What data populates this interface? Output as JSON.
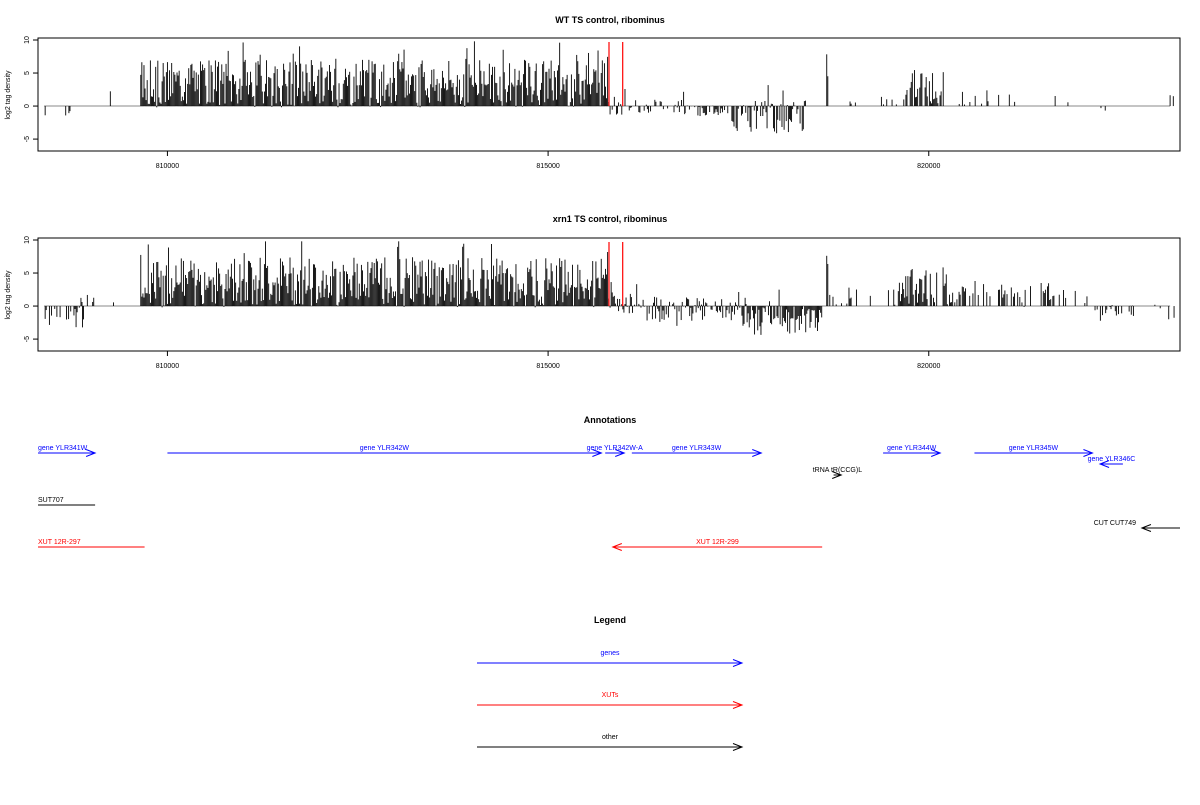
{
  "chart_data": [
    {
      "type": "bar",
      "title": "WT TS control, ribominus",
      "ylabel": "log2 tag density",
      "xlabel": "",
      "xlim": [
        808300,
        823300
      ],
      "ylim": [
        -6.5,
        10
      ],
      "yticks": [
        -5,
        0,
        5,
        10
      ],
      "xticks": [
        810000,
        815000,
        820000
      ],
      "grid": false,
      "markers": [
        815800,
        815980
      ],
      "marker_color": "#ff0000",
      "bar_color": "#000000",
      "segments": [
        {
          "x0": 808380,
          "x1": 808420,
          "mean": -1.0,
          "amp": 0.5,
          "density": 0.6,
          "seed": 11
        },
        {
          "x0": 808650,
          "x1": 808760,
          "mean": -1.2,
          "amp": 0.6,
          "density": 0.5,
          "seed": 12
        },
        {
          "x0": 809250,
          "x1": 809260,
          "mean": 2.0,
          "amp": 0.3,
          "density": 1.0,
          "seed": 13
        },
        {
          "x0": 809650,
          "x1": 815800,
          "mean": 3.4,
          "amp": 3.6,
          "density": 1.0,
          "seed": 14
        },
        {
          "x0": 815800,
          "x1": 816800,
          "mean": 0.1,
          "amp": 1.4,
          "density": 0.45,
          "seed": 15
        },
        {
          "x0": 816800,
          "x1": 817400,
          "mean": -0.6,
          "amp": 1.0,
          "density": 0.55,
          "seed": 16
        },
        {
          "x0": 817400,
          "x1": 818380,
          "mean": -1.7,
          "amp": 2.6,
          "density": 0.85,
          "seed": 17
        },
        {
          "x0": 818660,
          "x1": 818680,
          "mean": 6.0,
          "amp": 2.5,
          "density": 1.0,
          "seed": 18
        },
        {
          "x0": 818700,
          "x1": 819200,
          "mean": 1.2,
          "amp": 1.0,
          "density": 0.15,
          "seed": 19
        },
        {
          "x0": 819350,
          "x1": 819800,
          "mean": 1.0,
          "amp": 0.8,
          "density": 0.12,
          "seed": 20
        },
        {
          "x0": 819700,
          "x1": 820200,
          "mean": 3.0,
          "amp": 2.6,
          "density": 0.75,
          "seed": 21
        },
        {
          "x0": 820400,
          "x1": 822050,
          "mean": 1.4,
          "amp": 1.2,
          "density": 0.12,
          "seed": 22
        },
        {
          "x0": 822150,
          "x1": 822350,
          "mean": -1.0,
          "amp": 0.6,
          "density": 0.2,
          "seed": 23
        },
        {
          "x0": 823100,
          "x1": 823250,
          "mean": 1.6,
          "amp": 0.6,
          "density": 0.1,
          "seed": 24
        }
      ]
    },
    {
      "type": "bar",
      "title": "xrn1 TS control, ribominus",
      "ylabel": "log2 tag density",
      "xlabel": "",
      "xlim": [
        808300,
        823300
      ],
      "ylim": [
        -6.5,
        10
      ],
      "yticks": [
        -5,
        0,
        5,
        10
      ],
      "xticks": [
        810000,
        815000,
        820000
      ],
      "grid": false,
      "markers": [
        815800,
        815980
      ],
      "marker_color": "#ff0000",
      "bar_color": "#000000",
      "segments": [
        {
          "x0": 808380,
          "x1": 808900,
          "mean": -1.6,
          "amp": 1.8,
          "density": 0.5,
          "seed": 31
        },
        {
          "x0": 808850,
          "x1": 809050,
          "mean": 1.0,
          "amp": 1.0,
          "density": 0.15,
          "seed": 32
        },
        {
          "x0": 809250,
          "x1": 809450,
          "mean": 1.4,
          "amp": 1.2,
          "density": 0.15,
          "seed": 33
        },
        {
          "x0": 809650,
          "x1": 815800,
          "mean": 3.6,
          "amp": 3.8,
          "density": 1.0,
          "seed": 34
        },
        {
          "x0": 815800,
          "x1": 816300,
          "mean": 0.6,
          "amp": 1.8,
          "density": 0.7,
          "seed": 35
        },
        {
          "x0": 816300,
          "x1": 817600,
          "mean": -0.8,
          "amp": 2.2,
          "density": 0.85,
          "seed": 36
        },
        {
          "x0": 817600,
          "x1": 818600,
          "mean": -2.0,
          "amp": 2.4,
          "density": 0.9,
          "seed": 37
        },
        {
          "x0": 818660,
          "x1": 818680,
          "mean": 6.5,
          "amp": 2.0,
          "density": 1.0,
          "seed": 38
        },
        {
          "x0": 818700,
          "x1": 819600,
          "mean": 1.5,
          "amp": 1.3,
          "density": 0.35,
          "seed": 39
        },
        {
          "x0": 819600,
          "x1": 820300,
          "mean": 3.0,
          "amp": 2.8,
          "density": 0.8,
          "seed": 40
        },
        {
          "x0": 820300,
          "x1": 822100,
          "mean": 1.8,
          "amp": 2.0,
          "density": 0.45,
          "seed": 41
        },
        {
          "x0": 822100,
          "x1": 822700,
          "mean": -1.2,
          "amp": 1.4,
          "density": 0.45,
          "seed": 42
        },
        {
          "x0": 822900,
          "x1": 823250,
          "mean": -0.8,
          "amp": 1.2,
          "density": 0.2,
          "seed": 43
        }
      ]
    }
  ],
  "annotations": {
    "title": "Annotations",
    "items": [
      {
        "label": "gene YLR341W",
        "color": "#0000ff",
        "start": 808300,
        "end": 809050,
        "dir": "+",
        "row": 0
      },
      {
        "label": "gene YLR342W",
        "color": "#0000ff",
        "start": 810000,
        "end": 815700,
        "dir": "+",
        "row": 0
      },
      {
        "label": "gene YLR342W-A",
        "color": "#0000ff",
        "start": 815750,
        "end": 816000,
        "dir": "+",
        "row": 0
      },
      {
        "label": "gene YLR343W",
        "color": "#0000ff",
        "start": 816100,
        "end": 817800,
        "dir": "+",
        "row": 0
      },
      {
        "label": "gene YLR344W",
        "color": "#0000ff",
        "start": 819400,
        "end": 820150,
        "dir": "+",
        "row": 0
      },
      {
        "label": "gene YLR345W",
        "color": "#0000ff",
        "start": 820600,
        "end": 822150,
        "dir": "+",
        "row": 0
      },
      {
        "label": "gene YLR346C",
        "color": "#0000ff",
        "start": 822250,
        "end": 822550,
        "dir": "-",
        "row": 1
      },
      {
        "label": "tRNA tR(CCG)L",
        "color": "#000000",
        "start": 818750,
        "end": 818850,
        "dir": "+",
        "row": 2
      },
      {
        "label": "SUT707",
        "color": "#000000",
        "start": 808300,
        "end": 809050,
        "dir": "none",
        "row": 3
      },
      {
        "label": "CUT CUT749",
        "color": "#000000",
        "start": 822800,
        "end": 823300,
        "dir": "-",
        "row": 4
      },
      {
        "label": "XUT 12R-297",
        "color": "#ff0000",
        "start": 808300,
        "end": 809700,
        "dir": "none",
        "row": 5
      },
      {
        "label": "XUT 12R-299",
        "color": "#ff0000",
        "start": 815850,
        "end": 818600,
        "dir": "-",
        "row": 5
      }
    ]
  },
  "legend": {
    "title": "Legend",
    "items": [
      {
        "label": "genes",
        "color": "#0000ff"
      },
      {
        "label": "XUTs",
        "color": "#ff0000"
      },
      {
        "label": "other",
        "color": "#000000"
      }
    ]
  }
}
